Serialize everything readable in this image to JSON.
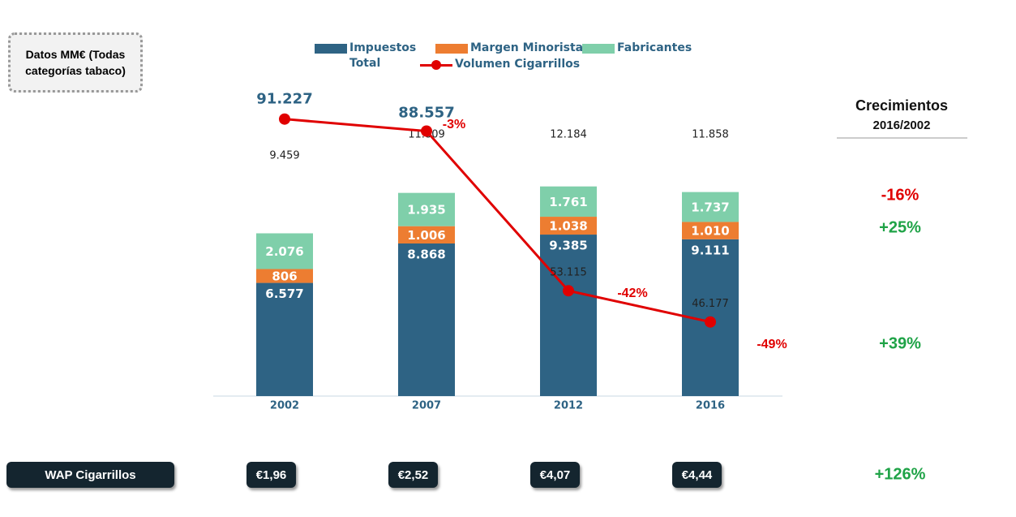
{
  "chart_data": {
    "type": "bar",
    "note": "Datos MM€ (Todas categorías tabaco)",
    "categories": [
      "2002",
      "2007",
      "2012",
      "2016"
    ],
    "series": [
      {
        "name": "Impuestos Total",
        "color": "#2e6384",
        "values": [
          6577,
          8868,
          9385,
          9111
        ],
        "value_labels": [
          "6.577",
          "8.868",
          "9.385",
          "9.111"
        ]
      },
      {
        "name": "Margen Minorista",
        "color": "#ed7d31",
        "values": [
          806,
          1006,
          1038,
          1010
        ],
        "value_labels": [
          "806",
          "1.006",
          "1.038",
          "1.010"
        ]
      },
      {
        "name": "Fabricantes",
        "color": "#7fcfaa",
        "values": [
          2076,
          1935,
          1761,
          1737
        ],
        "value_labels": [
          "2.076",
          "1.935",
          "1.761",
          "1.737"
        ]
      },
      {
        "name": "Volumen Cigarrillos",
        "color": "#e00000",
        "type": "line",
        "axis": "y2",
        "values": [
          91227,
          88557,
          53115,
          46177
        ],
        "value_labels": [
          "91.227",
          "88.557",
          "53.115",
          "46.177"
        ]
      }
    ],
    "totals": [
      9459,
      11809,
      12184,
      11858
    ],
    "totals_labels": [
      "9.459",
      "11.809",
      "12.184",
      "11.858"
    ],
    "line_annotations": [
      "-3%",
      "-42%",
      "-49%"
    ],
    "ylim": [
      0,
      20000
    ],
    "y2lim": [
      40000,
      100000
    ],
    "growth": {
      "title": "Crecimientos",
      "subtitle": "2016/2002",
      "labels": [
        "-16%",
        "+25%",
        "+39%"
      ]
    },
    "wap": {
      "label": "WAP Cigarrillos",
      "values": [
        "€1,96",
        "€2,52",
        "€4,07",
        "€4,44"
      ],
      "growth": "+126%"
    }
  }
}
